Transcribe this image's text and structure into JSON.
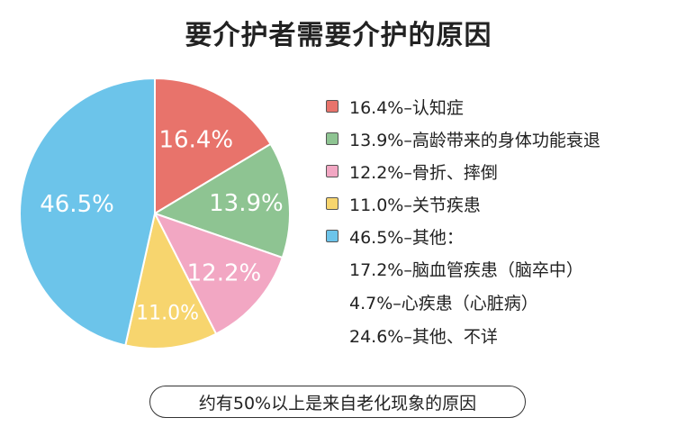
{
  "chart_data": {
    "type": "pie",
    "title": "要介护者需要介护的原因",
    "slices": [
      {
        "label": "16.4%",
        "legend": "16.4%–认知症",
        "value": 16.4,
        "color": "#e8736b"
      },
      {
        "label": "13.9%",
        "legend": "13.9%–高龄带来的身体功能衰退",
        "value": 13.9,
        "color": "#8ec492"
      },
      {
        "label": "12.2%",
        "legend": "12.2%–骨折、摔倒",
        "value": 12.2,
        "color": "#f2a7c3"
      },
      {
        "label": "11.0%",
        "legend": "11.0%–关节疾患",
        "value": 11.0,
        "color": "#f7d56e"
      },
      {
        "label": "46.5%",
        "legend": "46.5%–其他：",
        "value": 46.5,
        "color": "#6cc4ea"
      }
    ],
    "sub_items": [
      "17.2%–脑血管疾患（脑卒中）",
      "4.7%–心疾患（心脏病）",
      "24.6%–其他、不详"
    ],
    "legend_position": "right"
  },
  "note": "约有50%以上是来自老化现象的原因"
}
